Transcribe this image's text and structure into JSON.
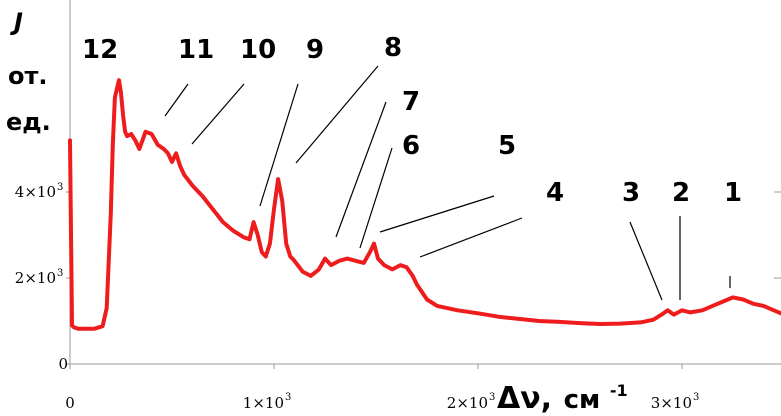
{
  "chart_data": {
    "type": "line",
    "title": "",
    "ylabel": [
      "J",
      "от.",
      "ед."
    ],
    "xlabel": {
      "symbol": "Δν,",
      "unit": "см",
      "exp": "-1"
    },
    "xlim": [
      0,
      3500
    ],
    "ylim": [
      0,
      6700
    ],
    "grid": false,
    "color": "#ee1c1c",
    "x_ticks": [
      {
        "value": 0,
        "label": "0",
        "sup": ""
      },
      {
        "value": 1000,
        "label": "1×10",
        "sup": "3"
      },
      {
        "value": 2000,
        "label": "2×10",
        "sup": "3"
      },
      {
        "value": 3000,
        "label": "3×10",
        "sup": "3"
      }
    ],
    "y_ticks": [
      {
        "value": 0,
        "label": "0",
        "sup": ""
      },
      {
        "value": 2000,
        "label": "2×10",
        "sup": "3"
      },
      {
        "value": 4000,
        "label": "4×10",
        "sup": "3"
      }
    ],
    "series": [
      {
        "x": [
          0,
          10,
          20,
          40,
          80,
          120,
          160,
          180,
          200,
          210,
          220,
          230,
          240,
          250,
          260,
          270,
          280,
          300,
          320,
          340,
          370,
          400,
          430,
          460,
          480,
          500,
          520,
          540,
          560,
          600,
          650,
          700,
          750,
          800,
          850,
          880,
          900,
          920,
          940,
          960,
          980,
          1000,
          1020,
          1040,
          1060,
          1080,
          1100,
          1140,
          1180,
          1220,
          1250,
          1280,
          1320,
          1360,
          1400,
          1440,
          1470,
          1490,
          1510,
          1540,
          1580,
          1620,
          1650,
          1680,
          1700,
          1750,
          1800,
          1900,
          2000,
          2100,
          2200,
          2300,
          2400,
          2500,
          2600,
          2700,
          2800,
          2860,
          2900,
          2930,
          2960,
          3000,
          3040,
          3100,
          3150,
          3200,
          3250,
          3300,
          3350,
          3400,
          3450,
          3500
        ],
        "y": [
          5200,
          900,
          850,
          820,
          820,
          820,
          880,
          1300,
          3500,
          5100,
          6200,
          6400,
          6600,
          6300,
          5800,
          5400,
          5300,
          5350,
          5200,
          5000,
          5400,
          5350,
          5100,
          5000,
          4900,
          4700,
          4900,
          4600,
          4400,
          4150,
          3900,
          3600,
          3300,
          3100,
          2950,
          2900,
          3300,
          3000,
          2600,
          2500,
          2800,
          3600,
          4300,
          3800,
          2800,
          2500,
          2400,
          2150,
          2050,
          2200,
          2450,
          2300,
          2400,
          2450,
          2400,
          2350,
          2600,
          2800,
          2450,
          2300,
          2200,
          2300,
          2250,
          2050,
          1850,
          1500,
          1350,
          1250,
          1180,
          1100,
          1050,
          1000,
          980,
          950,
          930,
          940,
          970,
          1030,
          1150,
          1250,
          1150,
          1250,
          1200,
          1250,
          1350,
          1450,
          1550,
          1500,
          1400,
          1350,
          1250,
          1150
        ]
      }
    ],
    "peaks": [
      {
        "label": "12"
      },
      {
        "label": "11"
      },
      {
        "label": "10"
      },
      {
        "label": "9"
      },
      {
        "label": "8"
      },
      {
        "label": "7"
      },
      {
        "label": "6"
      },
      {
        "label": "5"
      },
      {
        "label": "4"
      },
      {
        "label": "3"
      },
      {
        "label": "2"
      },
      {
        "label": "1"
      }
    ]
  }
}
